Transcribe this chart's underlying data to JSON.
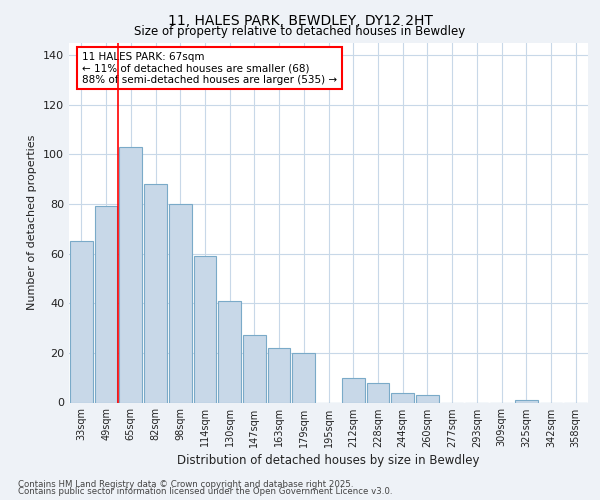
{
  "title1": "11, HALES PARK, BEWDLEY, DY12 2HT",
  "title2": "Size of property relative to detached houses in Bewdley",
  "xlabel": "Distribution of detached houses by size in Bewdley",
  "ylabel": "Number of detached properties",
  "categories": [
    "33sqm",
    "49sqm",
    "65sqm",
    "82sqm",
    "98sqm",
    "114sqm",
    "130sqm",
    "147sqm",
    "163sqm",
    "179sqm",
    "195sqm",
    "212sqm",
    "228sqm",
    "244sqm",
    "260sqm",
    "277sqm",
    "293sqm",
    "309sqm",
    "325sqm",
    "342sqm",
    "358sqm"
  ],
  "values": [
    65,
    79,
    103,
    88,
    80,
    59,
    41,
    27,
    22,
    20,
    0,
    10,
    8,
    4,
    3,
    0,
    0,
    0,
    1,
    0,
    0
  ],
  "bar_color": "#c8d8e8",
  "bar_edge_color": "#7aaac8",
  "red_line_index": 2.0,
  "annotation_title": "11 HALES PARK: 67sqm",
  "annotation_line1": "← 11% of detached houses are smaller (68)",
  "annotation_line2": "88% of semi-detached houses are larger (535) →",
  "ylim": [
    0,
    145
  ],
  "yticks": [
    0,
    20,
    40,
    60,
    80,
    100,
    120,
    140
  ],
  "footer1": "Contains HM Land Registry data © Crown copyright and database right 2025.",
  "footer2": "Contains public sector information licensed under the Open Government Licence v3.0.",
  "bg_color": "#eef2f7",
  "plot_bg_color": "#ffffff",
  "grid_color": "#c8d8e8"
}
